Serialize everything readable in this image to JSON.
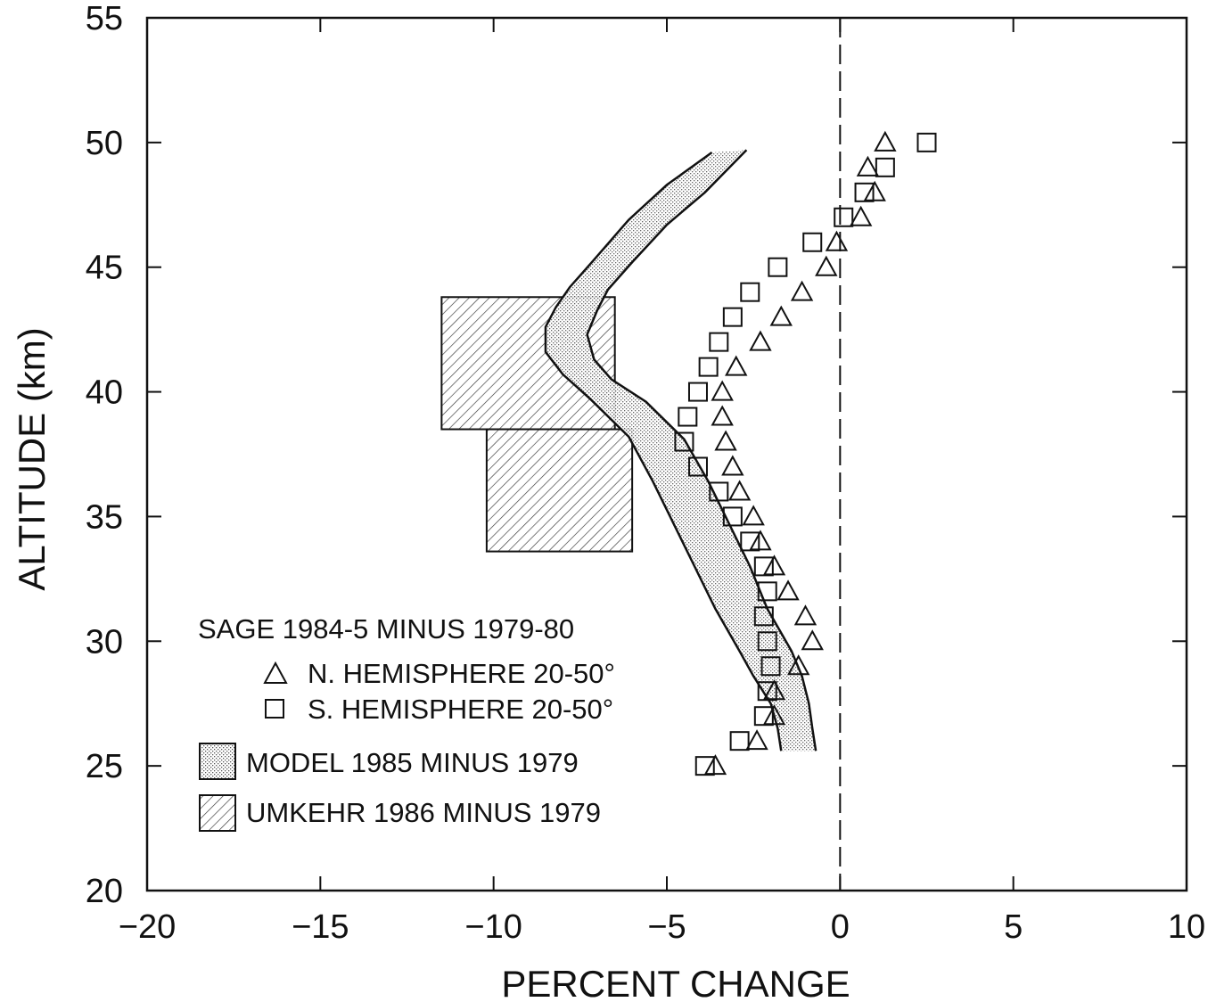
{
  "chart_data": {
    "type": "scatter",
    "title": "",
    "xlabel": "PERCENT CHANGE",
    "ylabel": "ALTITUDE (km)",
    "xlim": [
      -20,
      10
    ],
    "ylim": [
      20,
      55
    ],
    "x_ticks": [
      -20,
      -15,
      -10,
      -5,
      0,
      5,
      10
    ],
    "y_ticks": [
      20,
      25,
      30,
      35,
      40,
      45,
      50,
      55
    ],
    "x_tick_labels": [
      "−20",
      "−15",
      "−10",
      "−5",
      "0",
      "5",
      "10"
    ],
    "y_tick_labels": [
      "20",
      "25",
      "30",
      "35",
      "40",
      "45",
      "50",
      "55"
    ],
    "grid": false,
    "reference_line": {
      "x": 0,
      "style": "dashed"
    },
    "legend": {
      "placement": "bottom-left",
      "heading": "SAGE 1984-5 MINUS 1979-80",
      "n_hemisphere": "N. HEMISPHERE 20-50°",
      "s_hemisphere": "S. HEMISPHERE 20-50°",
      "model": "MODEL 1985 MINUS 1979",
      "umkehr": "UMKEHR 1986 MINUS 1979"
    },
    "series": [
      {
        "name": "N. HEMISPHERE 20-50°",
        "marker": "triangle",
        "points": [
          [
            -3.6,
            25
          ],
          [
            -2.4,
            26
          ],
          [
            -1.9,
            27
          ],
          [
            -1.9,
            28
          ],
          [
            -1.2,
            29
          ],
          [
            -0.8,
            30
          ],
          [
            -1.0,
            31
          ],
          [
            -1.5,
            32
          ],
          [
            -1.9,
            33
          ],
          [
            -2.3,
            34
          ],
          [
            -2.5,
            35
          ],
          [
            -2.9,
            36
          ],
          [
            -3.1,
            37
          ],
          [
            -3.3,
            38
          ],
          [
            -3.4,
            39
          ],
          [
            -3.4,
            40
          ],
          [
            -3.0,
            41
          ],
          [
            -2.3,
            42
          ],
          [
            -1.7,
            43
          ],
          [
            -1.1,
            44
          ],
          [
            -0.4,
            45
          ],
          [
            -0.1,
            46
          ],
          [
            0.6,
            47
          ],
          [
            1.0,
            48
          ],
          [
            0.8,
            49
          ],
          [
            1.3,
            50
          ]
        ]
      },
      {
        "name": "S. HEMISPHERE 20-50°",
        "marker": "square",
        "points": [
          [
            -3.9,
            25
          ],
          [
            -2.9,
            26
          ],
          [
            -2.2,
            27
          ],
          [
            -2.1,
            28
          ],
          [
            -2.0,
            29
          ],
          [
            -2.1,
            30
          ],
          [
            -2.2,
            31
          ],
          [
            -2.1,
            32
          ],
          [
            -2.2,
            33
          ],
          [
            -2.6,
            34
          ],
          [
            -3.1,
            35
          ],
          [
            -3.5,
            36
          ],
          [
            -4.1,
            37
          ],
          [
            -4.5,
            38
          ],
          [
            -4.4,
            39
          ],
          [
            -4.1,
            40
          ],
          [
            -3.8,
            41
          ],
          [
            -3.5,
            42
          ],
          [
            -3.1,
            43
          ],
          [
            -2.6,
            44
          ],
          [
            -1.8,
            45
          ],
          [
            -0.8,
            46
          ],
          [
            0.1,
            47
          ],
          [
            0.7,
            48
          ],
          [
            1.3,
            49
          ],
          [
            2.5,
            50
          ]
        ]
      }
    ],
    "model_band": {
      "name": "MODEL 1985 MINUS 1979",
      "left": [
        [
          -1.7,
          25.6
        ],
        [
          -1.8,
          26.5
        ],
        [
          -2.0,
          27.5
        ],
        [
          -2.5,
          28.6
        ],
        [
          -2.9,
          29.6
        ],
        [
          -3.6,
          31.3
        ],
        [
          -4.2,
          33.0
        ],
        [
          -4.8,
          34.7
        ],
        [
          -5.4,
          36.4
        ],
        [
          -6.1,
          38.2
        ],
        [
          -7.2,
          39.7
        ],
        [
          -8.0,
          40.7
        ],
        [
          -8.5,
          41.6
        ],
        [
          -8.5,
          42.6
        ],
        [
          -8.2,
          43.4
        ],
        [
          -7.8,
          44.2
        ],
        [
          -7.1,
          45.3
        ],
        [
          -6.1,
          46.9
        ],
        [
          -5.0,
          48.3
        ],
        [
          -3.7,
          49.6
        ]
      ],
      "right": [
        [
          -0.7,
          25.6
        ],
        [
          -0.8,
          26.5
        ],
        [
          -0.9,
          27.5
        ],
        [
          -1.1,
          28.6
        ],
        [
          -1.4,
          29.6
        ],
        [
          -2.1,
          31.3
        ],
        [
          -2.6,
          33.0
        ],
        [
          -3.2,
          34.7
        ],
        [
          -3.8,
          36.4
        ],
        [
          -4.5,
          38.1
        ],
        [
          -5.6,
          39.6
        ],
        [
          -6.6,
          40.5
        ],
        [
          -7.1,
          41.3
        ],
        [
          -7.3,
          42.3
        ],
        [
          -7.0,
          43.3
        ],
        [
          -6.7,
          44.1
        ],
        [
          -6.0,
          45.2
        ],
        [
          -5.0,
          46.7
        ],
        [
          -3.9,
          48.0
        ],
        [
          -2.7,
          49.7
        ]
      ]
    },
    "umkehr_boxes": [
      {
        "name": "UMKEHR 1986 MINUS 1979",
        "x": [
          -11.5,
          -6.5
        ],
        "y": [
          38.5,
          43.8
        ]
      },
      {
        "name": "UMKEHR 1986 MINUS 1979",
        "x": [
          -10.2,
          -6.0
        ],
        "y": [
          33.6,
          38.5
        ]
      }
    ]
  }
}
